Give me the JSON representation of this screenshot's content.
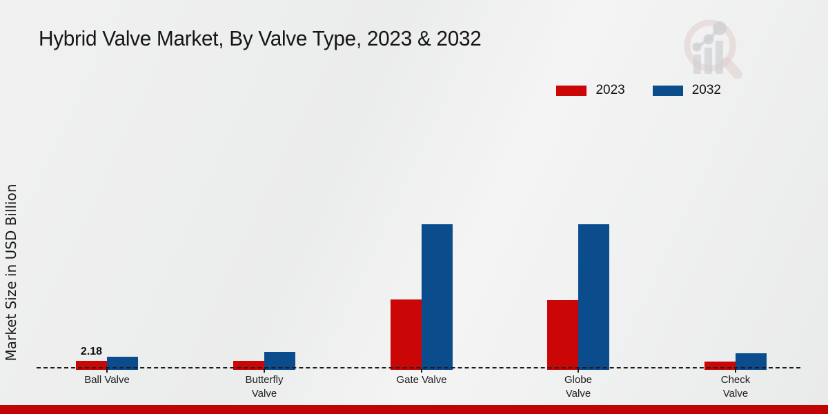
{
  "header": {
    "title": "Hybrid Valve Market, By Valve Type, 2023 & 2032",
    "watermark_icon": "magnifier-bar-chart-logo"
  },
  "footer": {
    "bar_color": "#c00404"
  },
  "chart_data": {
    "type": "bar",
    "title": "Hybrid Valve Market, By Valve Type, 2023 & 2032",
    "xlabel": "",
    "ylabel": "Market Size in USD Billion",
    "categories": [
      "Ball Valve",
      "Butterfly\nValve",
      "Gate Valve",
      "Globe\nValve",
      "Check\nValve"
    ],
    "series": [
      {
        "name": "2023",
        "color": "#cb0606",
        "values": [
          2.18,
          2.1,
          21.6,
          21.4,
          1.95
        ],
        "data_labels": [
          "2.18",
          "",
          "",
          "",
          ""
        ]
      },
      {
        "name": "2032",
        "color": "#0b4c8c",
        "values": [
          3.5,
          4.9,
          45.3,
          45.3,
          4.5
        ],
        "data_labels": [
          "",
          "",
          "",
          "",
          ""
        ]
      }
    ],
    "ylim": [
      0,
      50
    ],
    "grid": false,
    "y_axis_line_visible": false,
    "x_axis_style": "dashed-baseline",
    "legend_position": "top-right"
  }
}
